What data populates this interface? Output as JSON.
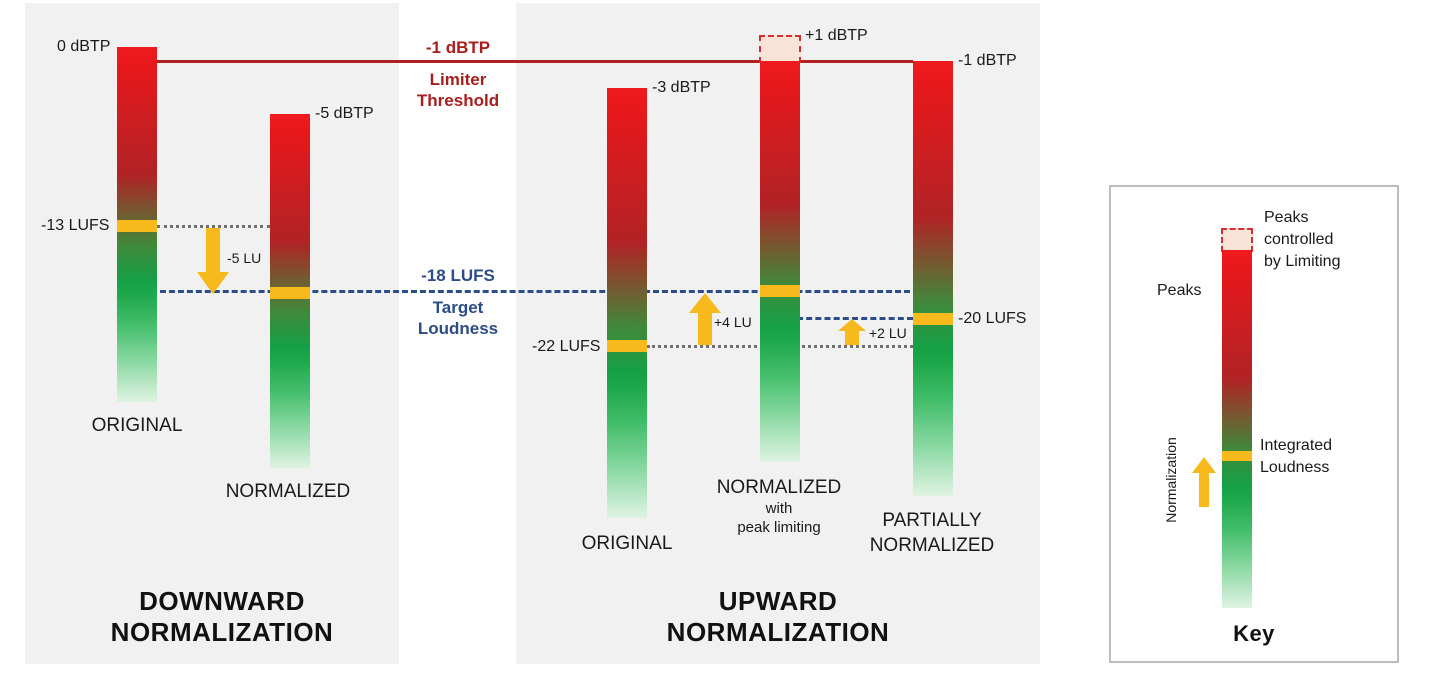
{
  "panels": {
    "downward": {
      "heading_line1": "DOWNWARD",
      "heading_line2": "NORMALIZATION"
    },
    "upward": {
      "heading_line1": "UPWARD",
      "heading_line2": "NORMALIZATION"
    }
  },
  "reference_lines": {
    "limiter": {
      "value": "-1 dBTP",
      "caption_line1": "Limiter",
      "caption_line2": "Threshold"
    },
    "target": {
      "value": "-18 LUFS",
      "caption_line1": "Target",
      "caption_line2": "Loudness"
    }
  },
  "downward_bars": {
    "original": {
      "peak": "0 dBTP",
      "loudness": "-13 LUFS",
      "caption": "ORIGINAL"
    },
    "normalized": {
      "peak": "-5 dBTP",
      "caption": "NORMALIZED"
    },
    "shift": "-5 LU"
  },
  "upward_bars": {
    "original": {
      "peak": "-3 dBTP",
      "loudness": "-22 LUFS",
      "caption": "ORIGINAL"
    },
    "normalized": {
      "peak": "+1 dBTP",
      "caption_line1": "NORMALIZED",
      "caption_line2": "with",
      "caption_line3": "peak limiting"
    },
    "partial": {
      "peak": "-1 dBTP",
      "loudness": "-20 LUFS",
      "caption_line1": "PARTIALLY",
      "caption_line2": "NORMALIZED"
    },
    "shift_full": "+4 LU",
    "shift_partial": "+2 LU"
  },
  "key": {
    "title": "Key",
    "peaks_limited_line1": "Peaks",
    "peaks_limited_line2": "controlled",
    "peaks_limited_line3": "by Limiting",
    "peaks": "Peaks",
    "integrated_line1": "Integrated",
    "integrated_line2": "Loudness",
    "normalization": "Normalization"
  },
  "colors": {
    "panel_bg": "#f1f1f1",
    "limiter_red": "#a81e1e",
    "target_blue": "#2c4c86",
    "loudness_band": "#f7b91c",
    "arrow": "#f7b91c"
  }
}
